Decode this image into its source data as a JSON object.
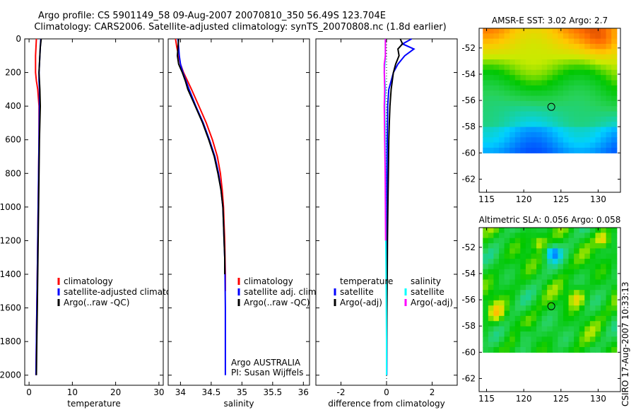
{
  "header": {
    "line1": "Argo profile: CS 5901149_58 09-Aug-2007 20070810_350 56.49S 123.704E",
    "line2": "Climatology: CARS2006. Satellite-adjusted climatology: synTS_20070808.nc (1.8d earlier)"
  },
  "footer": {
    "stamp": "CSIRO 17-Aug-2007 10:33:13"
  },
  "colors": {
    "red": "#ff0000",
    "blue": "#0000ff",
    "black": "#000000",
    "cyan": "#00ffff",
    "magenta": "#ff00ff"
  },
  "chart_data": [
    {
      "id": "temperature",
      "type": "line",
      "xlabel": "temperature",
      "xlim": [
        -1,
        31
      ],
      "ylim": [
        0,
        2060
      ],
      "yreverse": true,
      "xticks": [
        0,
        10,
        20,
        30
      ],
      "yticks": [
        0,
        200,
        400,
        600,
        800,
        1000,
        1200,
        1400,
        1600,
        1800,
        2000
      ],
      "legend": [
        "climatology",
        "satellite-adjusted climatology",
        "Argo(..raw -QC)"
      ],
      "series": [
        {
          "name": "climatology",
          "color": "red",
          "depth": [
            0,
            50,
            100,
            150,
            200,
            250,
            300,
            400,
            600,
            800,
            1000,
            1200,
            1400,
            1600,
            1800,
            2000
          ],
          "values": [
            1.7,
            1.6,
            1.5,
            1.5,
            1.5,
            1.7,
            2.0,
            2.3,
            2.3,
            2.2,
            2.1,
            2.0,
            1.9,
            1.8,
            1.7,
            1.6
          ]
        },
        {
          "name": "satellite-adjusted climatology",
          "color": "blue",
          "depth": [
            0,
            50,
            100,
            150,
            200,
            250,
            300,
            400,
            600,
            800,
            1000,
            1200,
            1400,
            1600,
            1800,
            2000
          ],
          "values": [
            2.7,
            2.6,
            2.5,
            2.4,
            2.3,
            2.3,
            2.4,
            2.4,
            2.3,
            2.2,
            2.1,
            2.0,
            1.9,
            1.8,
            1.7,
            1.6
          ]
        },
        {
          "name": "Argo(..raw -QC)",
          "color": "black",
          "depth": [
            0,
            50,
            100,
            150,
            200,
            250,
            300,
            400,
            500,
            600,
            800,
            1000,
            1200,
            1400,
            1600,
            1800,
            2000
          ],
          "values": [
            2.8,
            2.6,
            2.5,
            2.4,
            2.3,
            2.4,
            2.5,
            2.6,
            2.5,
            2.4,
            2.3,
            2.2,
            2.1,
            2.0,
            1.9,
            1.8,
            1.7
          ]
        }
      ]
    },
    {
      "id": "salinity",
      "type": "line",
      "xlabel": "salinity",
      "xlim": [
        33.8,
        36.1
      ],
      "ylim": [
        0,
        2060
      ],
      "yreverse": true,
      "xticks": [
        34,
        34.5,
        35,
        35.5,
        36
      ],
      "yticks": [
        0,
        200,
        400,
        600,
        800,
        1000,
        1200,
        1400,
        1600,
        1800,
        2000
      ],
      "legend": [
        "climatology",
        "satellite adj. clim.",
        "Argo(..raw -QC)"
      ],
      "annotation": [
        "Argo AUSTRALIA",
        "PI: Susan Wijffels"
      ],
      "series": [
        {
          "name": "climatology",
          "color": "red",
          "depth": [
            0,
            50,
            100,
            150,
            200,
            300,
            400,
            500,
            600,
            700,
            800,
            900,
            1000,
            1100,
            1200,
            1300,
            1400,
            1500
          ],
          "values": [
            33.92,
            33.94,
            33.97,
            34.0,
            34.05,
            34.18,
            34.3,
            34.42,
            34.52,
            34.6,
            34.65,
            34.68,
            34.7,
            34.71,
            34.72,
            34.725,
            34.73,
            34.73
          ]
        },
        {
          "name": "satellite adj. clim.",
          "color": "blue",
          "depth": [
            0,
            50,
            100,
            150,
            200,
            300,
            400,
            500,
            600,
            700,
            800,
            900,
            1000,
            1100,
            1200,
            1300,
            1400,
            1600,
            1800,
            2000
          ],
          "values": [
            33.96,
            33.97,
            33.98,
            34.0,
            34.04,
            34.14,
            34.25,
            34.37,
            34.47,
            34.56,
            34.62,
            34.66,
            34.69,
            34.7,
            34.71,
            34.72,
            34.725,
            34.73,
            34.73,
            34.73
          ]
        },
        {
          "name": "Argo(..raw -QC)",
          "color": "black",
          "depth": [
            0,
            50,
            100,
            150,
            200,
            250,
            300,
            400,
            500,
            600,
            700,
            800,
            900,
            1000,
            1100,
            1200,
            1300,
            1400
          ],
          "values": [
            33.97,
            33.96,
            33.95,
            33.97,
            34.03,
            34.08,
            34.12,
            34.24,
            34.36,
            34.46,
            34.55,
            34.61,
            34.66,
            34.69,
            34.7,
            34.71,
            34.72,
            34.72
          ]
        }
      ]
    },
    {
      "id": "difference",
      "type": "line",
      "xlabel": "difference from climatology",
      "xlim": [
        -3.1,
        3.1
      ],
      "ylim": [
        0,
        2060
      ],
      "yreverse": true,
      "xticks": [
        -2,
        0,
        2
      ],
      "yticks": [
        0,
        200,
        400,
        600,
        800,
        1000,
        1200,
        1400,
        1600,
        1800,
        2000
      ],
      "legend_left_title": "temperature",
      "legend_left": [
        "satellite",
        "Argo(-adj)"
      ],
      "legend_right_title": "salinity",
      "legend_right": [
        "satellite",
        "Argo(-adj)"
      ],
      "series": [
        {
          "name": "temperature satellite",
          "color": "blue",
          "depth": [
            0,
            30,
            60,
            100,
            150,
            200,
            250,
            300,
            400,
            600,
            800,
            1000,
            1400,
            2000
          ],
          "values": [
            1.1,
            0.7,
            1.2,
            0.8,
            0.5,
            0.3,
            0.2,
            0.1,
            0.05,
            0.03,
            0.02,
            0.02,
            0.01,
            0.01
          ]
        },
        {
          "name": "temperature Argo(-adj)",
          "color": "black",
          "depth": [
            0,
            30,
            60,
            100,
            150,
            200,
            250,
            300,
            400,
            500,
            600,
            800,
            1000,
            1200,
            1400,
            1600,
            1800,
            2000
          ],
          "values": [
            0.6,
            0.7,
            0.5,
            0.55,
            0.4,
            0.3,
            0.25,
            0.2,
            0.15,
            0.12,
            0.1,
            0.08,
            0.06,
            0.04,
            0.03,
            0.02,
            0.01,
            0.0
          ]
        },
        {
          "name": "salinity satellite",
          "color": "cyan",
          "depth": [
            0,
            100,
            200,
            300,
            400,
            600,
            800,
            1000,
            1200,
            1400,
            1600,
            1800,
            2000
          ],
          "values": [
            -0.05,
            -0.05,
            -0.1,
            -0.05,
            -0.08,
            -0.05,
            -0.05,
            -0.04,
            -0.03,
            -0.02,
            -0.01,
            0.0,
            0.0
          ]
        },
        {
          "name": "salinity Argo(-adj)",
          "color": "magenta",
          "depth": [
            0,
            50,
            100,
            150,
            200,
            300,
            400,
            600,
            800,
            1000,
            1200
          ],
          "values": [
            -0.05,
            -0.05,
            -0.05,
            -0.1,
            -0.1,
            -0.08,
            -0.1,
            -0.08,
            -0.06,
            -0.05,
            -0.04
          ]
        }
      ]
    },
    {
      "id": "sst",
      "type": "heatmap",
      "title": "AMSR-E SST: 3.02  Argo: 2.7",
      "xlim": [
        114,
        133
      ],
      "ylim": [
        -63,
        -50.5
      ],
      "data_extent": {
        "lon": [
          114.5,
          132.5
        ],
        "lat": [
          -60,
          -50.5
        ]
      },
      "xticks": [
        115,
        120,
        125,
        130
      ],
      "yticks": [
        -52,
        -54,
        -56,
        -58,
        -60,
        -62
      ],
      "marker": {
        "lon": 123.704,
        "lat": -56.49
      }
    },
    {
      "id": "sla",
      "type": "heatmap",
      "title": "Altimetric SLA: 0.056  Argo: 0.058",
      "xlim": [
        114,
        133
      ],
      "ylim": [
        -63,
        -50.5
      ],
      "data_extent": {
        "lon": [
          114.5,
          132.5
        ],
        "lat": [
          -60,
          -50.5
        ]
      },
      "xticks": [
        115,
        120,
        125,
        130
      ],
      "yticks": [
        -52,
        -54,
        -56,
        -58,
        -60,
        -62
      ],
      "marker": {
        "lon": 123.704,
        "lat": -56.49
      }
    }
  ]
}
